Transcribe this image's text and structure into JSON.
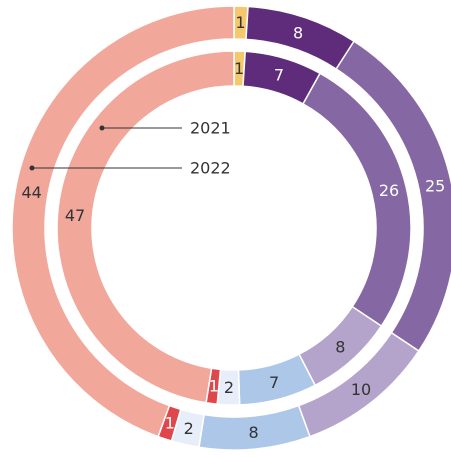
{
  "chart_data": {
    "type": "donut",
    "colors": [
      "#f6c86e",
      "#5f2c7b",
      "#8567a3",
      "#b4a4cc",
      "#adc7e9",
      "#e8eef9",
      "#e0474c",
      "#f2a79b"
    ],
    "series": [
      {
        "name": "2021",
        "values": [
          1,
          7,
          26,
          8,
          7,
          2,
          1,
          47
        ]
      },
      {
        "name": "2022",
        "values": [
          1,
          8,
          25,
          10,
          8,
          2,
          1,
          44
        ]
      }
    ]
  }
}
